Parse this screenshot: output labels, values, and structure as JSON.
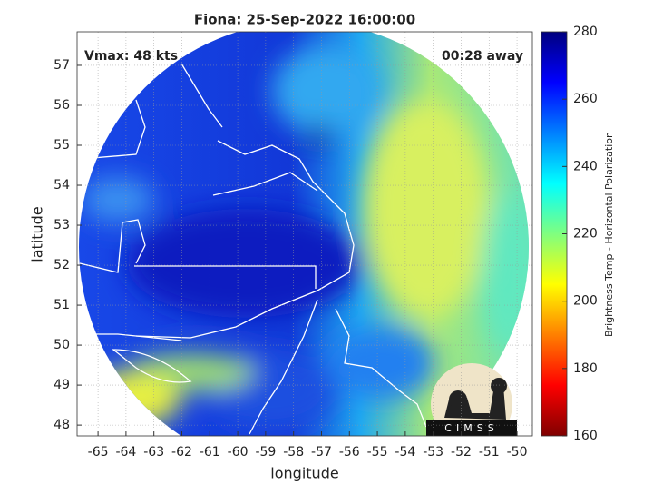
{
  "title": "Fiona: 25-Sep-2022 16:00:00",
  "annotations": {
    "vmax": "Vmax: 48 kts",
    "time_away": "00:28 away"
  },
  "axes": {
    "xlabel": "longitude",
    "ylabel": "latitude",
    "xlim": [
      -65.75,
      -49.45
    ],
    "ylim": [
      47.73,
      57.84
    ],
    "xticks": [
      -65,
      -64,
      -63,
      -62,
      -61,
      -60,
      -59,
      -58,
      -57,
      -56,
      -55,
      -54,
      -53,
      -52,
      -51,
      -50
    ],
    "yticks": [
      48,
      49,
      50,
      51,
      52,
      53,
      54,
      55,
      56,
      57
    ],
    "grid": true
  },
  "colorbar": {
    "label": "Brightness Temp - Horizontal Polarization",
    "clim": [
      160,
      280
    ],
    "ticks": [
      160,
      180,
      200,
      220,
      240,
      260,
      280
    ]
  },
  "logo": {
    "text": "CIMSS"
  }
}
